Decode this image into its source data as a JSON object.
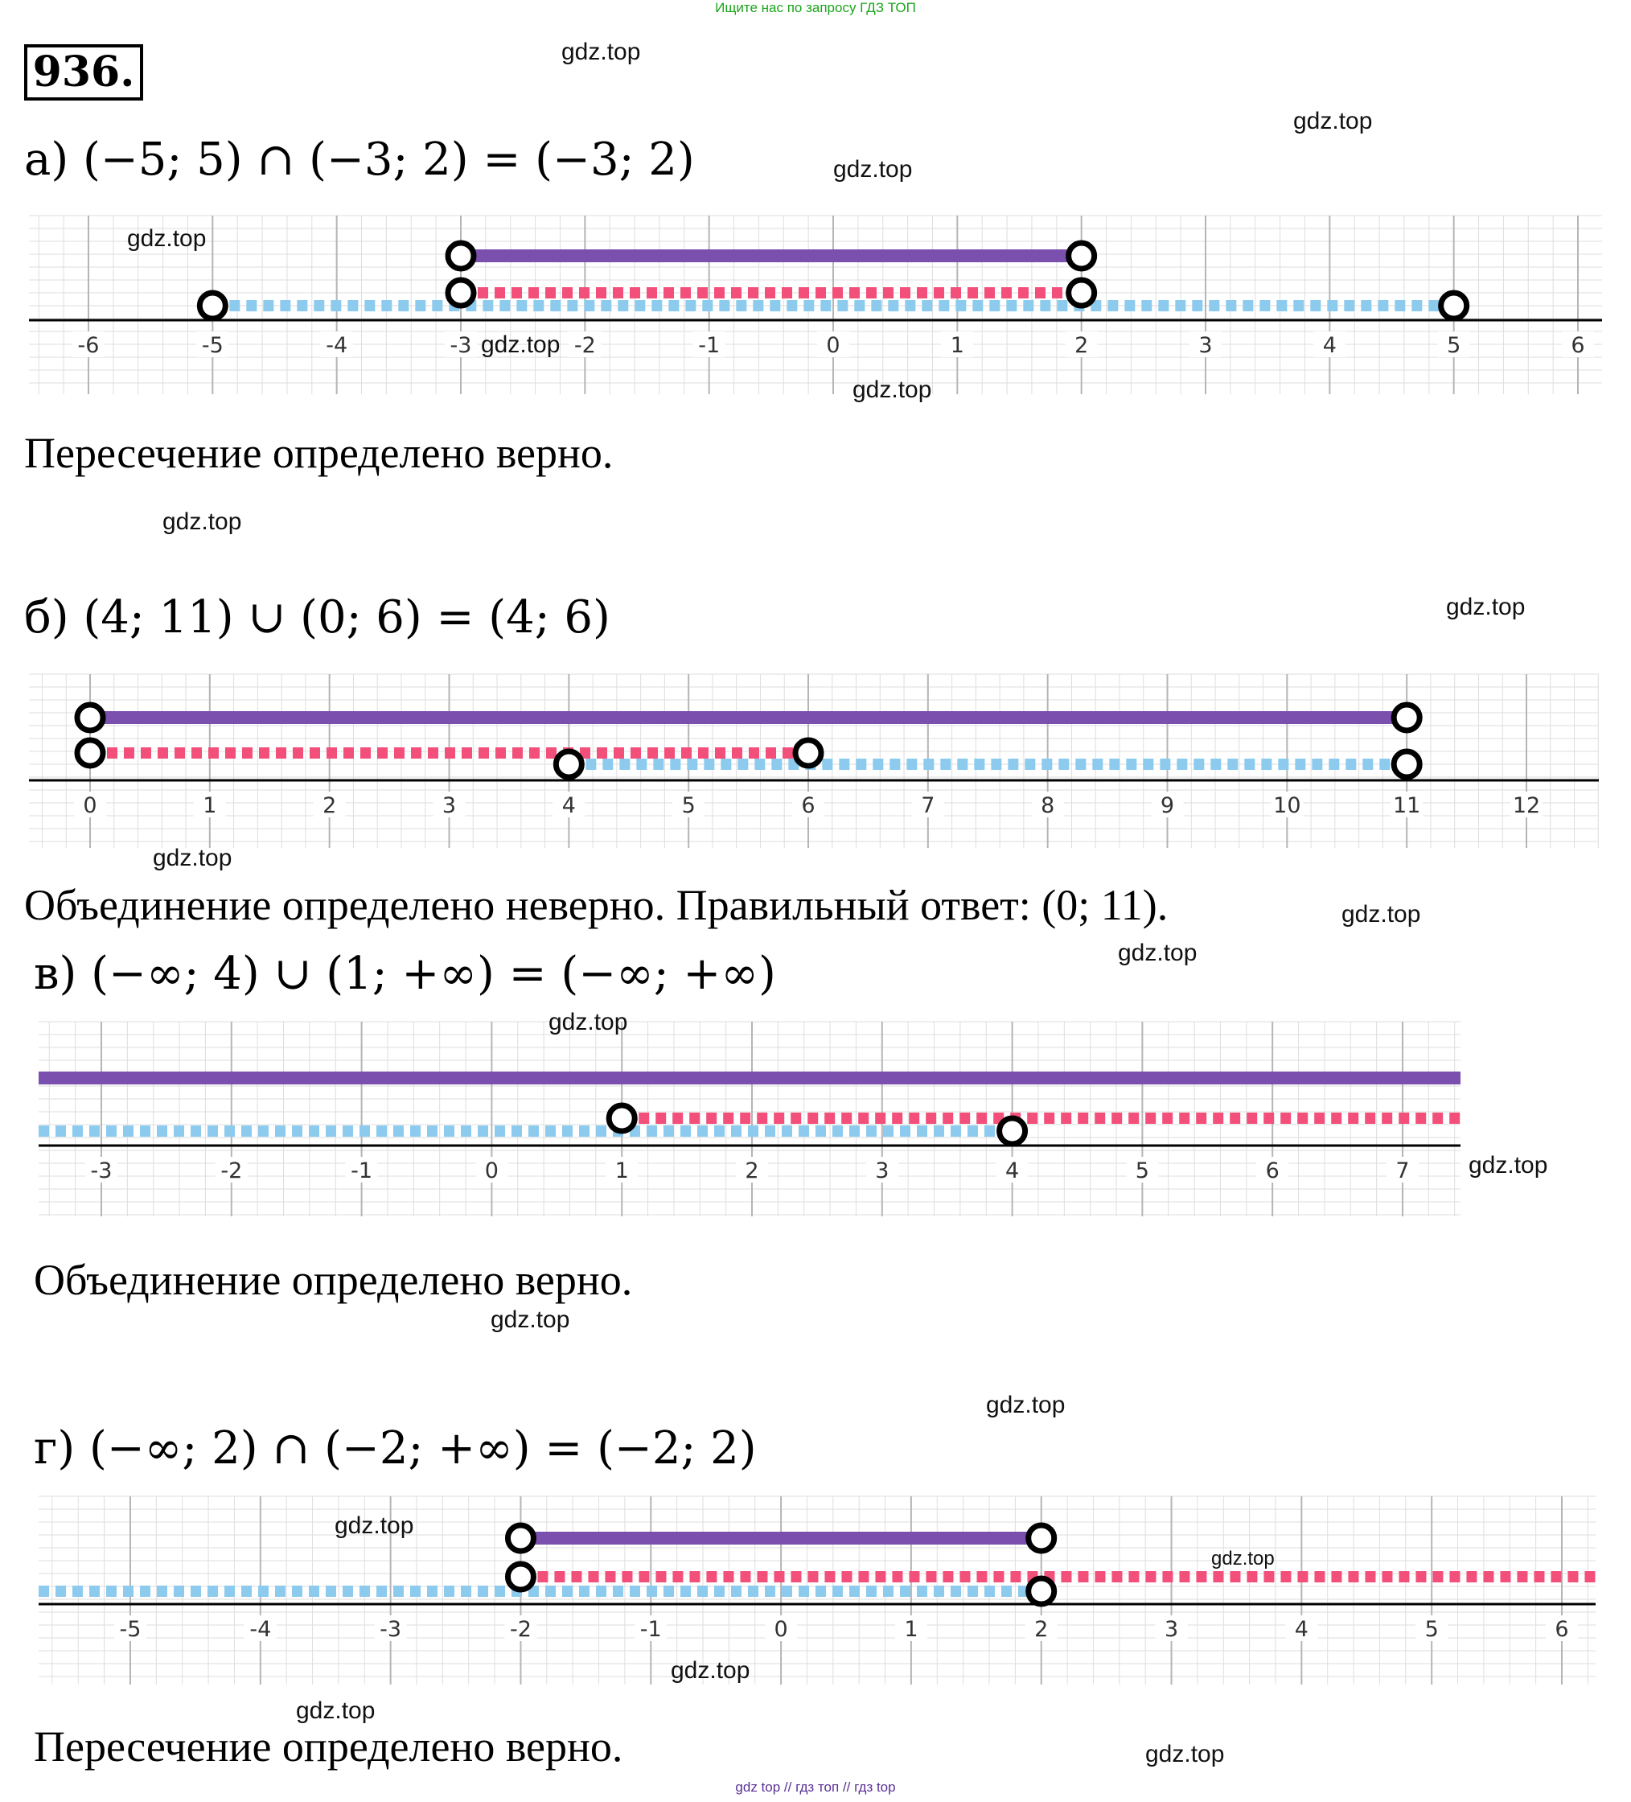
{
  "banner": "Ищите нас по запросу ГДЗ ТОП",
  "task_number": "936.",
  "watermark": "gdz.top",
  "footer": "gdz top  //  гдз топ  //  гдз top",
  "colors": {
    "result": "#7b4fae",
    "set_a": "#f2507a",
    "set_b": "#8ccbee",
    "axis": "#000000",
    "grid": "#dedede"
  },
  "parts": [
    {
      "equation": "а) (−5; 5) ∩ (−3; 2) = (−3; 2)",
      "verdict": "Пересечение определено верно."
    },
    {
      "equation": "б) (4; 11) ∪ (0; 6) = (4; 6)",
      "verdict": "Объединение определено неверно. Правильный ответ: (0; 11)."
    },
    {
      "equation": "в) (−∞; 4) ∪ (1; +∞) = (−∞; +∞)",
      "verdict": "Объединение определено верно."
    },
    {
      "equation": "г) (−∞; 2) ∩ (−2; +∞) = (−2; 2)",
      "verdict": "Пересечение определено верно."
    }
  ],
  "chart_data": [
    {
      "type": "number-line",
      "ticks": [
        -6,
        -5,
        -4,
        -3,
        -2,
        -1,
        0,
        1,
        2,
        3,
        4,
        5,
        6
      ],
      "segments": [
        {
          "role": "result",
          "from": -3,
          "to": 2,
          "open_from": true,
          "open_to": true
        },
        {
          "role": "set_a",
          "from": -3,
          "to": 2,
          "open_from": true,
          "open_to": true
        },
        {
          "role": "set_b",
          "from": -5,
          "to": 5,
          "open_from": true,
          "open_to": true
        }
      ]
    },
    {
      "type": "number-line",
      "ticks": [
        0,
        1,
        2,
        3,
        4,
        5,
        6,
        7,
        8,
        9,
        10,
        11,
        12
      ],
      "segments": [
        {
          "role": "result",
          "from": 0,
          "to": 11,
          "open_from": true,
          "open_to": true
        },
        {
          "role": "set_a",
          "from": 0,
          "to": 6,
          "open_from": true,
          "open_to": true
        },
        {
          "role": "set_b",
          "from": 4,
          "to": 11,
          "open_from": true,
          "open_to": true
        }
      ]
    },
    {
      "type": "number-line",
      "ticks": [
        -3,
        -2,
        -1,
        0,
        1,
        2,
        3,
        4,
        5,
        6,
        7
      ],
      "segments": [
        {
          "role": "result",
          "from": null,
          "to": null
        },
        {
          "role": "set_a",
          "from": 1,
          "to": null,
          "open_from": true
        },
        {
          "role": "set_b",
          "from": null,
          "to": 4,
          "open_to": true
        }
      ]
    },
    {
      "type": "number-line",
      "ticks": [
        -5,
        -4,
        -3,
        -2,
        -1,
        0,
        1,
        2,
        3,
        4,
        5,
        6
      ],
      "segments": [
        {
          "role": "result",
          "from": -2,
          "to": 2,
          "open_from": true,
          "open_to": true
        },
        {
          "role": "set_a",
          "from": -2,
          "to": null,
          "open_from": true
        },
        {
          "role": "set_b",
          "from": null,
          "to": 2,
          "open_to": true
        }
      ]
    }
  ]
}
